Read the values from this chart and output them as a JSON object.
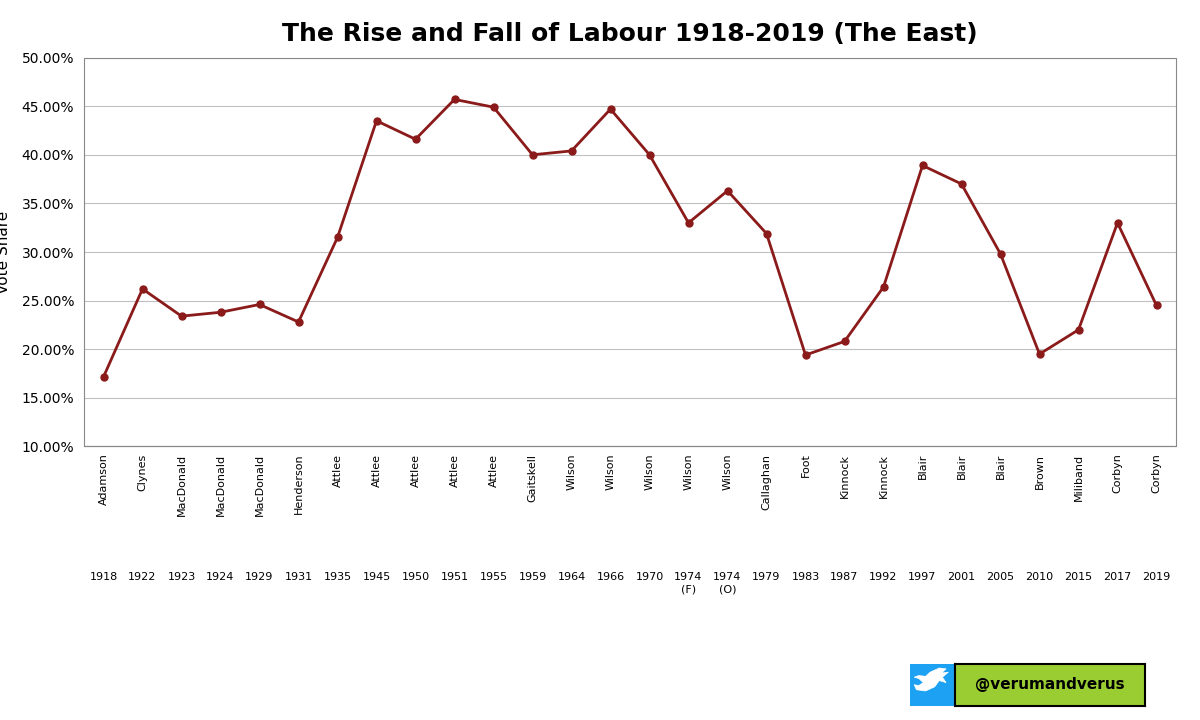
{
  "title": "The Rise and Fall of Labour 1918-2019 (The East)",
  "ylabel": "Vote Share",
  "line_color": "#8B1A1A",
  "marker_color": "#8B1A1A",
  "background_color": "#FFFFFF",
  "grid_color": "#C0C0C0",
  "leaders": [
    "Adamson",
    "Clynes",
    "MacDonald",
    "MacDonald",
    "MacDonald",
    "Henderson",
    "Attlee",
    "Attlee",
    "Attlee",
    "Attlee",
    "Attlee",
    "Gaitskell",
    "Wilson",
    "Wilson",
    "Wilson",
    "Wilson",
    "Wilson",
    "Callaghan",
    "Foot",
    "Kinnock",
    "Kinnock",
    "Blair",
    "Blair",
    "Blair",
    "Brown",
    "Miliband",
    "Corbyn",
    "Corbyn"
  ],
  "year_labels": [
    "1918",
    "1922",
    "1923",
    "1924",
    "1929",
    "1931",
    "1935",
    "1945",
    "1950",
    "1951",
    "1955",
    "1959",
    "1964",
    "1966",
    "1970",
    "1974\n(F)",
    "1974\n(O)",
    "1979",
    "1983",
    "1987",
    "1992",
    "1997",
    "2001",
    "2005",
    "2010",
    "2015",
    "2017",
    "2019"
  ],
  "values": [
    0.1715,
    0.262,
    0.234,
    0.238,
    0.246,
    0.228,
    0.315,
    0.435,
    0.416,
    0.457,
    0.449,
    0.4,
    0.404,
    0.447,
    0.4,
    0.33,
    0.363,
    0.319,
    0.194,
    0.208,
    0.264,
    0.389,
    0.37,
    0.298,
    0.195,
    0.22,
    0.33,
    0.245
  ],
  "ylim_min": 0.1,
  "ylim_max": 0.5,
  "yticks": [
    0.1,
    0.15,
    0.2,
    0.25,
    0.3,
    0.35,
    0.4,
    0.45,
    0.5
  ],
  "twitter_blue": "#1DA1F2",
  "handle_bg": "#9ACD32",
  "handle_text": "@verumandverus"
}
